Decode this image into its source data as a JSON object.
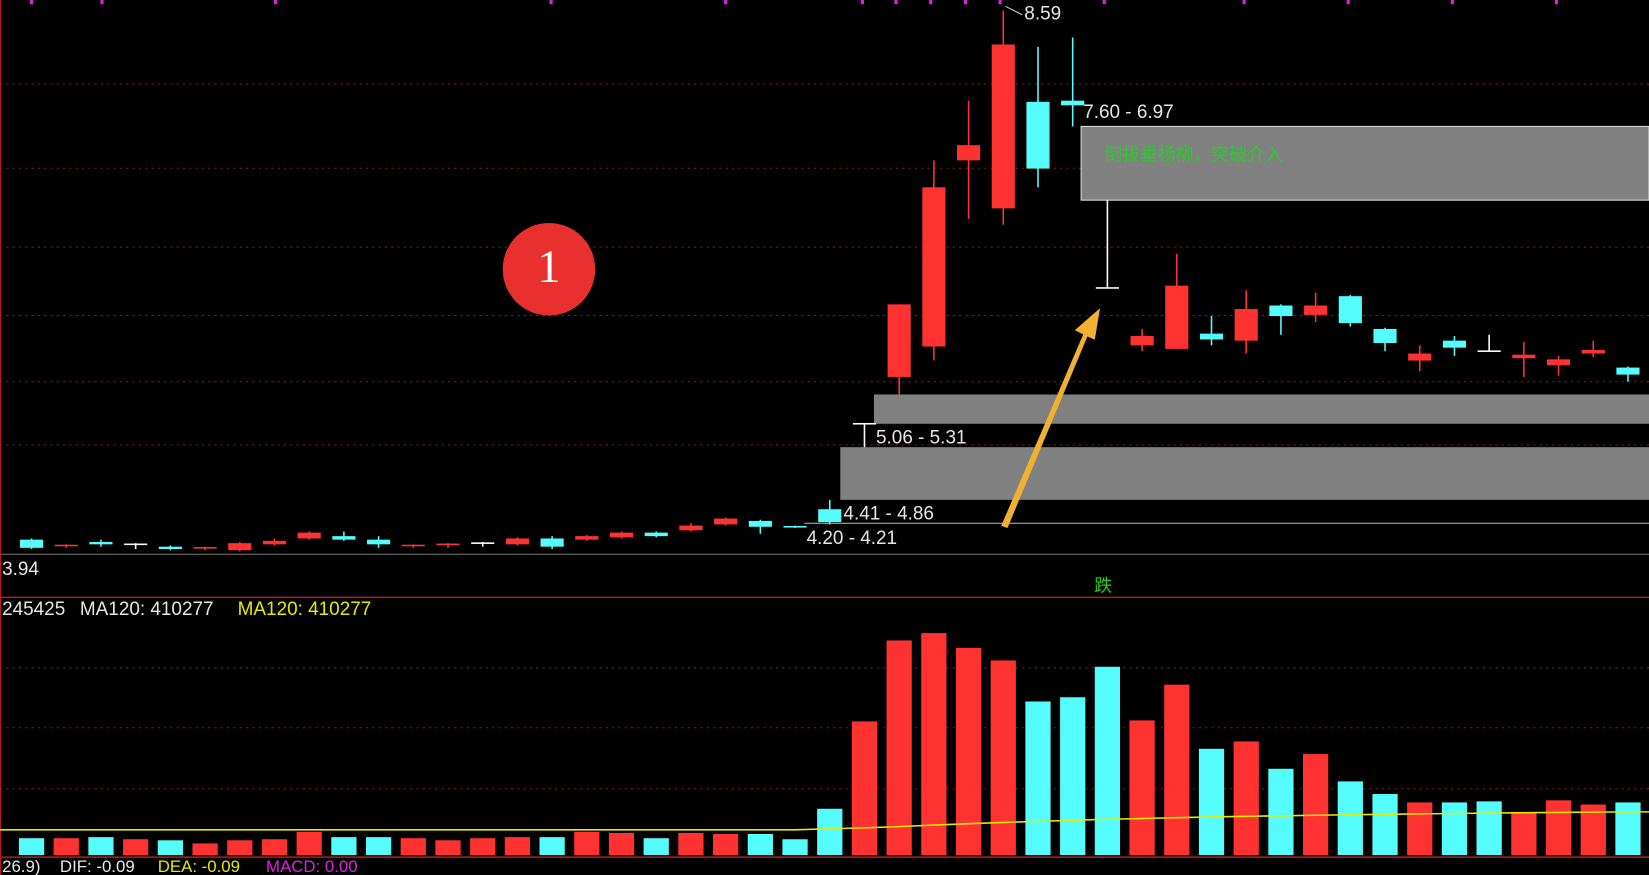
{
  "chart_data": [
    {
      "type": "candlestick",
      "open": [
        4.07,
        4.01,
        4.05,
        4.03,
        4.01,
        3.99,
        3.98,
        4.03,
        4.08,
        4.1,
        4.07,
        4.01,
        4.02,
        4.04,
        4.03,
        4.08,
        4.07,
        4.09,
        4.13,
        4.15,
        4.2,
        4.23,
        4.18,
        4.33,
        5.06,
        5.46,
        5.72,
        7.31,
        6.9,
        7.81,
        7.82,
        6.22,
        5.73,
        5.7,
        5.83,
        5.77,
        6.07,
        5.99,
        6.15,
        5.87,
        5.6,
        5.77,
        5.68,
        5.62,
        5.56,
        5.66,
        5.54
      ],
      "high": [
        4.08,
        4.03,
        4.07,
        4.04,
        4.02,
        4.01,
        4.05,
        4.08,
        4.14,
        4.14,
        4.1,
        4.03,
        4.04,
        4.05,
        4.09,
        4.1,
        4.11,
        4.14,
        4.14,
        4.21,
        4.26,
        4.24,
        4.19,
        4.41,
        5.06,
        6.08,
        7.31,
        7.82,
        8.59,
        8.28,
        8.36,
        6.97,
        5.87,
        6.51,
        5.98,
        6.2,
        6.08,
        6.18,
        6.16,
        5.88,
        5.73,
        5.81,
        5.82,
        5.76,
        5.64,
        5.77,
        5.55
      ],
      "low": [
        3.99,
        4.0,
        4.01,
        3.99,
        3.98,
        3.98,
        3.97,
        4.02,
        4.07,
        4.06,
        4.0,
        4.0,
        4.0,
        4.01,
        4.02,
        3.99,
        4.06,
        4.08,
        4.09,
        4.14,
        4.19,
        4.12,
        4.17,
        4.2,
        4.86,
        5.31,
        5.6,
        6.81,
        6.76,
        7.08,
        7.6,
        6.22,
        5.68,
        5.7,
        5.73,
        5.66,
        5.82,
        5.93,
        5.89,
        5.68,
        5.51,
        5.64,
        5.68,
        5.46,
        5.47,
        5.63,
        5.42
      ],
      "close": [
        4.0,
        4.02,
        4.03,
        4.03,
        3.99,
        4.0,
        4.04,
        4.06,
        4.13,
        4.07,
        4.03,
        4.02,
        4.03,
        4.04,
        4.08,
        4.01,
        4.1,
        4.13,
        4.1,
        4.19,
        4.25,
        4.18,
        4.17,
        4.22,
        5.06,
        6.08,
        7.08,
        7.44,
        8.3,
        7.24,
        7.78,
        6.22,
        5.81,
        6.24,
        5.78,
        6.04,
        5.98,
        6.07,
        5.92,
        5.75,
        5.66,
        5.71,
        5.68,
        5.65,
        5.61,
        5.69,
        5.48
      ],
      "up_color": "#ff3232",
      "down_color": "#54fcfc",
      "flat_color": "#ffffff",
      "ylim": [
        3.94,
        8.68
      ],
      "gaps": [
        {
          "label": "7.60 - 6.97",
          "high": 7.6,
          "low": 6.97
        },
        {
          "label": "5.06 - 5.31",
          "high": 5.31,
          "low": 5.06
        },
        {
          "label": "4.41 - 4.86",
          "high": 4.86,
          "low": 4.41
        },
        {
          "label": "4.20 - 4.21",
          "high": 4.21,
          "low": 4.2
        }
      ],
      "gap_color": "#808080",
      "annotation": "倒拔垂杨柳，突破介入",
      "marker": "1",
      "signal": "跌"
    },
    {
      "type": "volume",
      "legend": [
        "245425",
        "MA120: 410277",
        "MA120: 410277"
      ],
      "values": [
        160000,
        160000,
        170000,
        150000,
        140000,
        110000,
        140000,
        150000,
        220000,
        170000,
        170000,
        160000,
        140000,
        160000,
        170000,
        170000,
        220000,
        210000,
        160000,
        210000,
        200000,
        200000,
        150000,
        440000,
        1270000,
        2040000,
        2110000,
        1970000,
        1850000,
        1460000,
        1500000,
        1790000,
        1280000,
        1620000,
        1010000,
        1080000,
        820000,
        960000,
        700000,
        580000,
        500000,
        500000,
        510000,
        410000,
        520000,
        480000,
        500000
      ],
      "ma": [
        240000,
        240000,
        240000,
        240000,
        240000,
        240000,
        240000,
        240000,
        240000,
        240000,
        240000,
        240000,
        240000,
        240000,
        240000,
        240000,
        240000,
        240000,
        240000,
        240000,
        240000,
        240000,
        240000,
        250000,
        258000,
        270000,
        285000,
        298000,
        310000,
        320000,
        330000,
        340000,
        347000,
        355000,
        362000,
        368000,
        373000,
        378000,
        383000,
        387000,
        391000,
        395000,
        399000,
        402000,
        405000,
        408000,
        410277
      ],
      "ma_color": "#e8e800",
      "ylim": [
        0,
        2430000
      ]
    },
    {
      "type": "indicator-text",
      "texts": [
        "26.9)",
        "DIF: -0.09",
        "DEA: -0.09",
        "MACD: 0.00"
      ]
    }
  ]
}
